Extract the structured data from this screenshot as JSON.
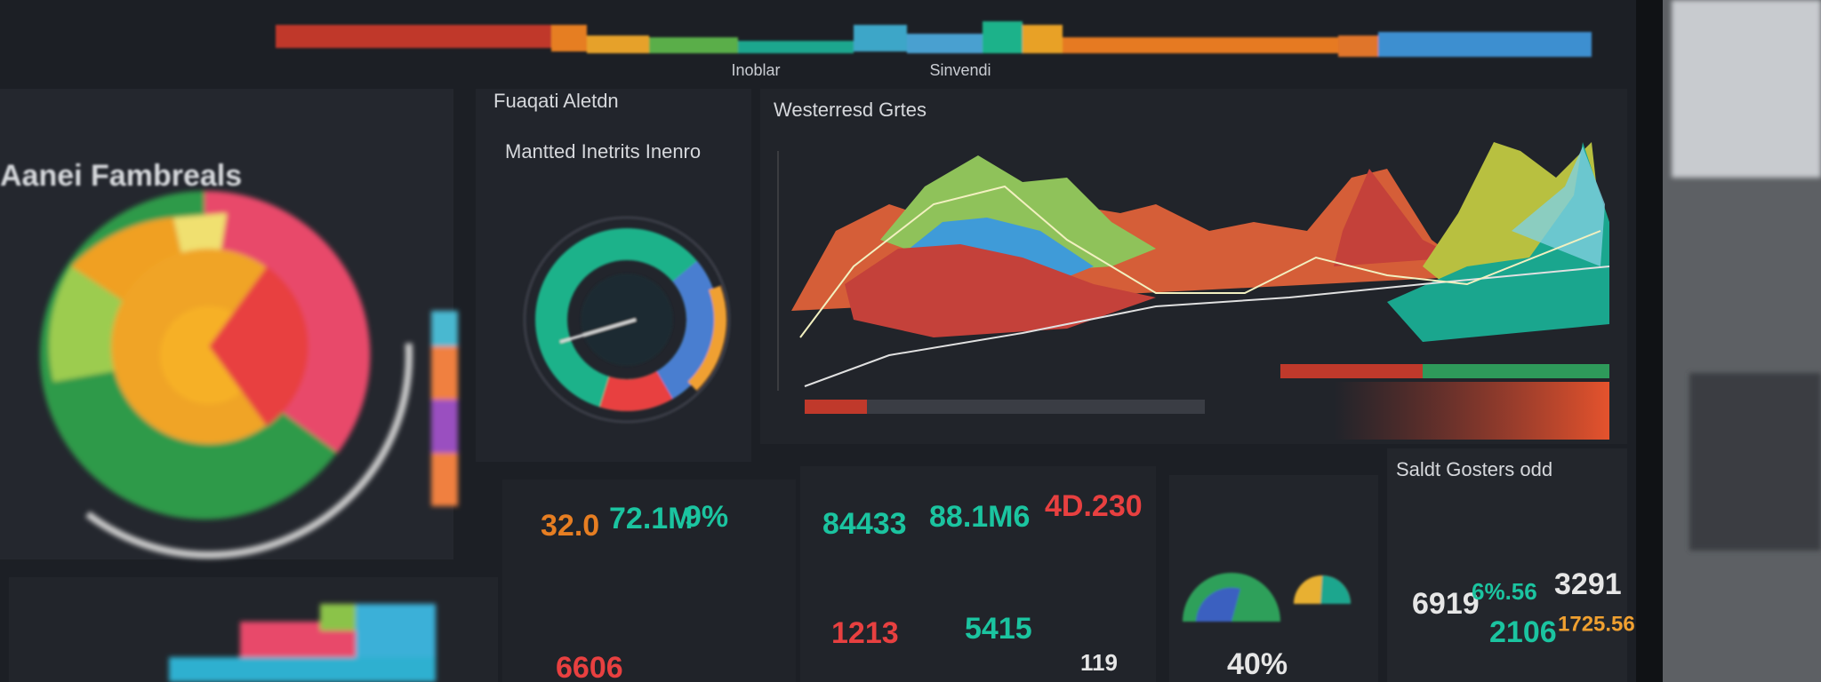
{
  "top": {
    "label_left": "Inoblar",
    "label_right": "Sinvendi"
  },
  "left_panel": {
    "title": "Aanei Fambreals"
  },
  "donut_panel": {
    "title": "Fuaqati Aletdn",
    "subtitle": "Mantted Inetrits Inenro"
  },
  "area_panel": {
    "title": "Westerresd Grtes"
  },
  "right_panel": {
    "title": "Saldt Gosters odd"
  },
  "kpis": [
    "32.0",
    "72.1M",
    "9%",
    "84433",
    "88.1M6",
    "4D.230",
    "1213",
    "5415",
    "6919",
    "6%.56",
    "3291",
    "2106",
    "1725.56",
    "119",
    "40%",
    "6606"
  ]
}
